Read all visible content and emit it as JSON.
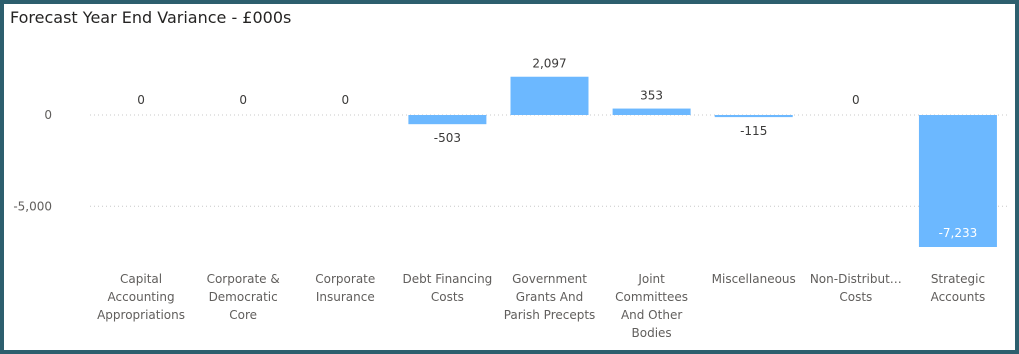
{
  "title": "Forecast Year End Variance - £000s",
  "colors": {
    "bar": "#6cb8ff",
    "gridline": "#c8c8c8",
    "frame": "#2d5f6e"
  },
  "chart_data": {
    "type": "bar",
    "title": "Forecast Year End Variance - £000s",
    "xlabel": "",
    "ylabel": "",
    "ylim": [
      -7800,
      3400
    ],
    "yticks": [
      {
        "value": 0,
        "label": "0"
      },
      {
        "value": -5000,
        "label": "-5,000"
      }
    ],
    "grid": true,
    "categories": [
      [
        "Capital",
        "Accounting",
        "Appropriations"
      ],
      [
        "Corporate &",
        "Democratic",
        "Core"
      ],
      [
        "Corporate",
        "Insurance"
      ],
      [
        "Debt Financing",
        "Costs"
      ],
      [
        "Government",
        "Grants And",
        "Parish Precepts"
      ],
      [
        "Joint",
        "Committees",
        "And Other",
        "Bodies"
      ],
      [
        "Miscellaneous"
      ],
      [
        "Non-Distribut…",
        "Costs"
      ],
      [
        "Strategic",
        "Accounts"
      ]
    ],
    "values": [
      0,
      0,
      0,
      -503,
      2097,
      353,
      -115,
      0,
      -7233
    ],
    "data_labels": [
      "0",
      "0",
      "0",
      "-503",
      "2,097",
      "353",
      "-115",
      "0",
      "-7,233"
    ]
  }
}
